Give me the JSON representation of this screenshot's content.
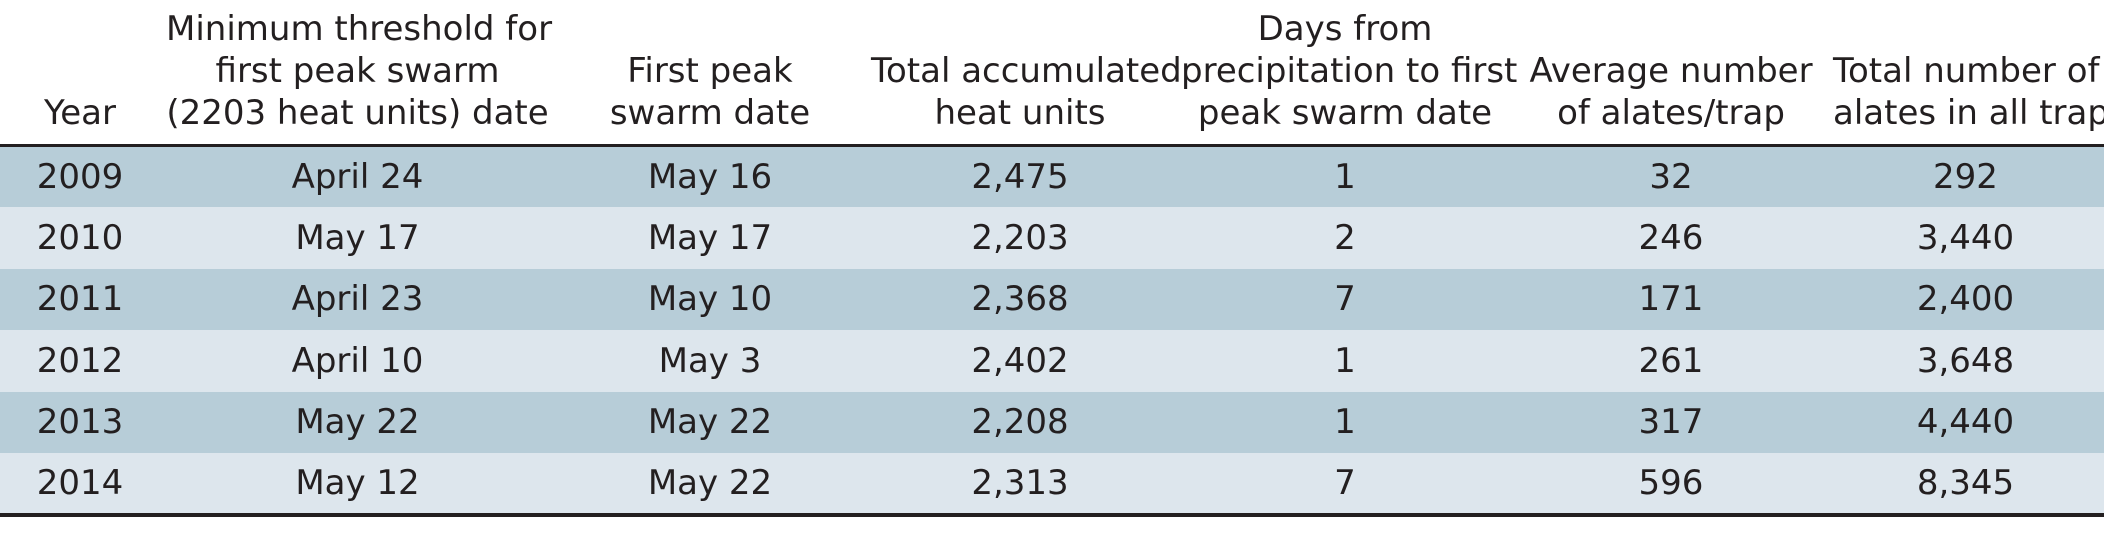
{
  "table": {
    "headers": [
      {
        "key": "year",
        "lines": [
          "Year"
        ]
      },
      {
        "key": "min_threshold",
        "lines": [
          "Minimum threshold for",
          "first peak swarm",
          "(2203 heat units) date"
        ]
      },
      {
        "key": "first_peak",
        "lines": [
          "First peak",
          "swarm date"
        ]
      },
      {
        "key": "total_heat",
        "lines": [
          "Total accumulated",
          "heat units"
        ]
      },
      {
        "key": "days_from_precip",
        "lines": [
          "Days from",
          "precipitation to first",
          "peak swarm date"
        ]
      },
      {
        "key": "avg_alates",
        "lines": [
          "Average number",
          "of alates/trap"
        ]
      },
      {
        "key": "total_alates",
        "lines": [
          "Total number of",
          "alates in all traps"
        ]
      }
    ],
    "rows": [
      [
        "2009",
        "April 24",
        "May 16",
        "2,475",
        "1",
        "32",
        "292"
      ],
      [
        "2010",
        "May 17",
        "May 17",
        "2,203",
        "2",
        "246",
        "3,440"
      ],
      [
        "2011",
        "April 23",
        "May 10",
        "2,368",
        "7",
        "171",
        "2,400"
      ],
      [
        "2012",
        "April 10",
        "May 3",
        "2,402",
        "1",
        "261",
        "3,648"
      ],
      [
        "2013",
        "May 22",
        "May 22",
        "2,208",
        "1",
        "317",
        "4,440"
      ],
      [
        "2014",
        "May 12",
        "May 22",
        "2,313",
        "7",
        "596",
        "8,345"
      ]
    ],
    "row_colors": [
      "#b7cdd8",
      "#dde6ed"
    ],
    "rule_color": "#231f20"
  }
}
